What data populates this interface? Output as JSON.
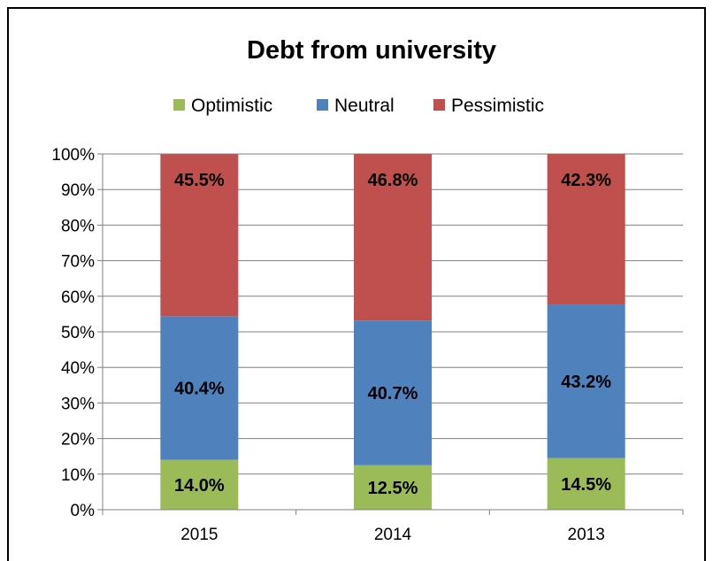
{
  "chart_data": {
    "type": "bar",
    "stacked": true,
    "title": "Debt from university",
    "categories": [
      "2015",
      "2014",
      "2013"
    ],
    "series": [
      {
        "name": "Optimistic",
        "color": "#9BBB59",
        "values": [
          14.0,
          12.5,
          14.5
        ],
        "labels": [
          "14.0%",
          "12.5%",
          "14.5%"
        ]
      },
      {
        "name": "Neutral",
        "color": "#4F81BD",
        "values": [
          40.4,
          40.7,
          43.2
        ],
        "labels": [
          "40.4%",
          "40.7%",
          "43.2%"
        ]
      },
      {
        "name": "Pessimistic",
        "color": "#C0504D",
        "values": [
          45.5,
          46.8,
          42.3
        ],
        "labels": [
          "45.5%",
          "46.8%",
          "42.3%"
        ]
      }
    ],
    "ylim": [
      0,
      100
    ],
    "yticks": [
      "0%",
      "10%",
      "20%",
      "30%",
      "40%",
      "50%",
      "60%",
      "70%",
      "80%",
      "90%",
      "100%"
    ],
    "grid": true,
    "legend_position": "top"
  }
}
